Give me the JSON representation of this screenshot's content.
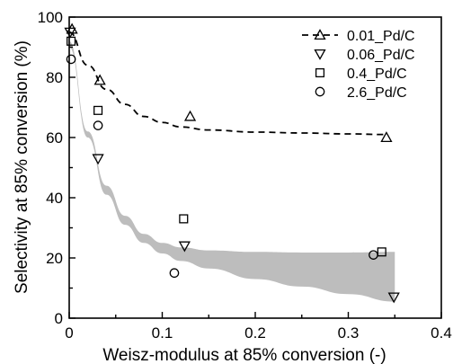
{
  "chart_data": {
    "type": "scatter",
    "xlabel": "Weisz-modulus at 85% conversion (-)",
    "ylabel": "Selectivity at 85% conversion (%)",
    "xlim": [
      0,
      0.4
    ],
    "ylim": [
      0,
      100
    ],
    "x_ticks": [
      "0",
      "0.1",
      "0.2",
      "0.3",
      "0.4"
    ],
    "y_ticks": [
      "0",
      "20",
      "40",
      "60",
      "80",
      "100"
    ],
    "legend_position": "top-right",
    "series": [
      {
        "name": "0.01_Pd/C",
        "marker": "triangle-up",
        "x": [
          0.003,
          0.033,
          0.13,
          0.341
        ],
        "y": [
          96,
          79,
          67,
          60
        ]
      },
      {
        "name": "0.06_Pd/C",
        "marker": "triangle-down",
        "x": [
          0.001,
          0.031,
          0.124,
          0.349
        ],
        "y": [
          95,
          53,
          24,
          7
        ]
      },
      {
        "name": "0.4_Pd/C",
        "marker": "square",
        "x": [
          0.002,
          0.031,
          0.123,
          0.336
        ],
        "y": [
          92,
          69,
          33,
          22
        ]
      },
      {
        "name": "2.6_Pd/C",
        "marker": "circle",
        "x": [
          0.002,
          0.031,
          0.113,
          0.327
        ],
        "y": [
          86,
          64,
          15,
          21
        ]
      }
    ],
    "fit_curve": {
      "style": "dashed",
      "x": [
        0,
        0.02,
        0.04,
        0.06,
        0.08,
        0.1,
        0.12,
        0.15,
        0.2,
        0.25,
        0.3,
        0.34
      ],
      "y": [
        95,
        84,
        76,
        71,
        67,
        65,
        63.5,
        62.5,
        61.8,
        61.5,
        61.2,
        61
      ]
    },
    "band": {
      "x": [
        0,
        0.02,
        0.04,
        0.06,
        0.08,
        0.1,
        0.12,
        0.15,
        0.2,
        0.25,
        0.3,
        0.35
      ],
      "upper": [
        92,
        62,
        44,
        34,
        28,
        25,
        23.5,
        22.5,
        22,
        21.8,
        21.8,
        22
      ],
      "lower": [
        90,
        60,
        41,
        31,
        25,
        21.5,
        19,
        16.5,
        13,
        10.5,
        8,
        5.5
      ]
    }
  }
}
